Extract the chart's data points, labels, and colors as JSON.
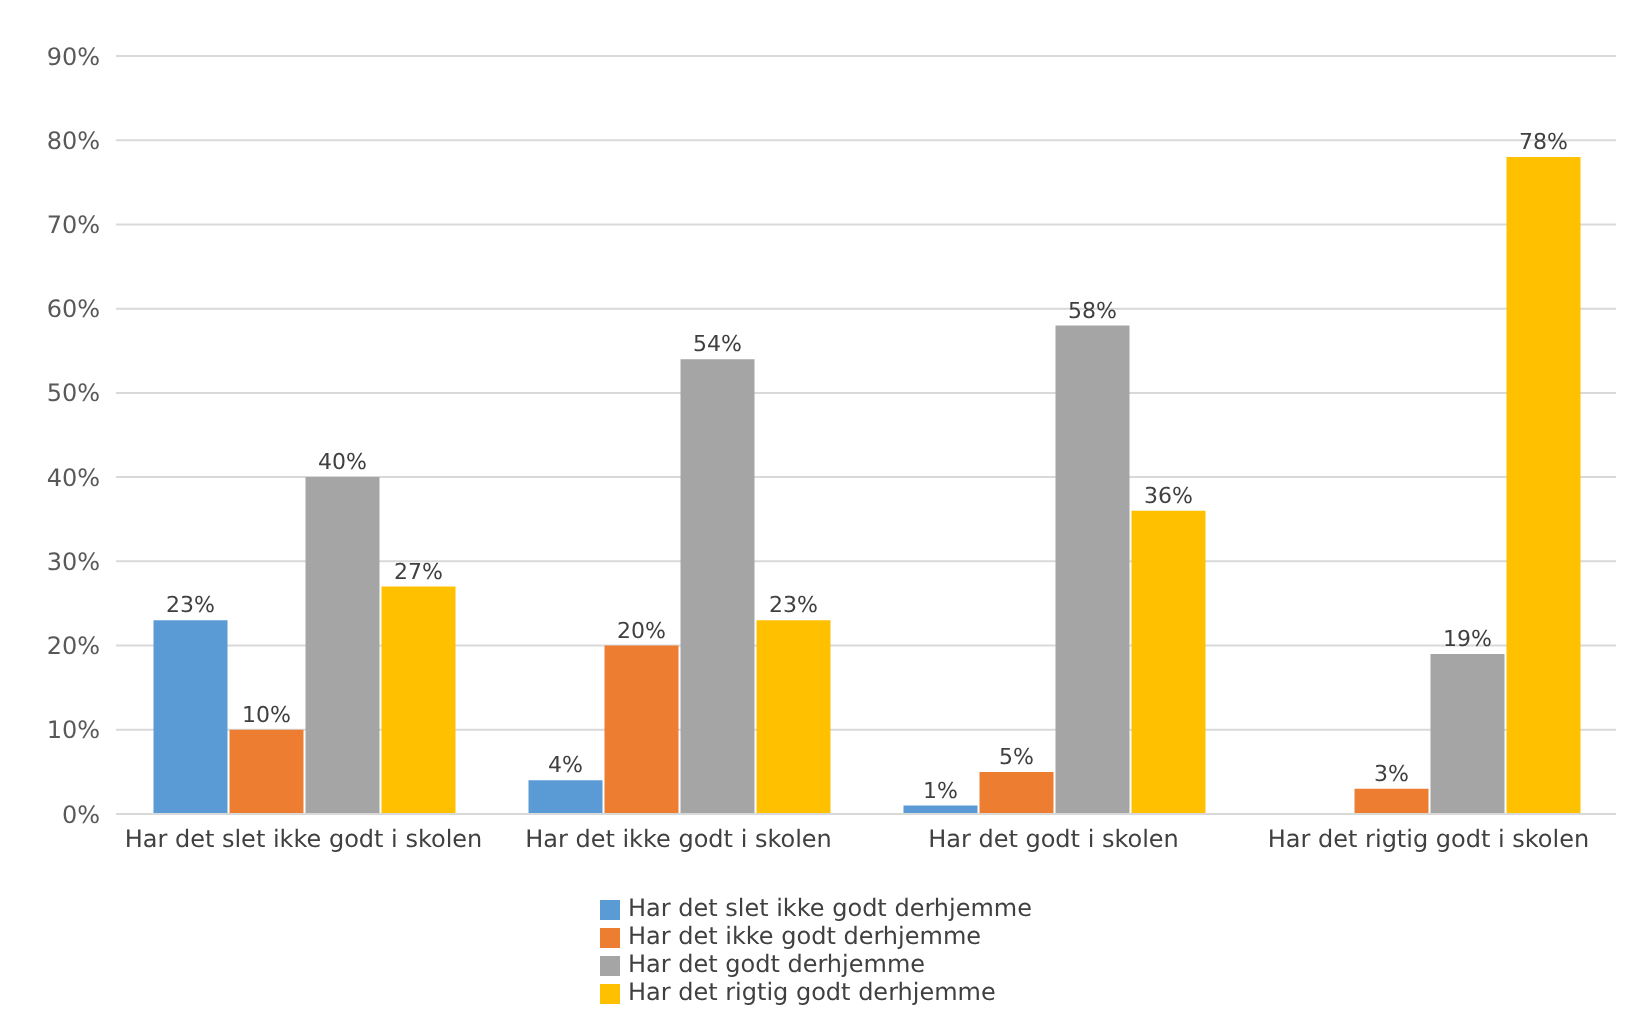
{
  "chart_data": {
    "type": "bar",
    "categories": [
      "Har det slet ikke godt i skolen",
      "Har det ikke godt i skolen",
      "Har det godt i skolen",
      "Har det rigtig godt i skolen"
    ],
    "series": [
      {
        "name": "Har det slet ikke godt derhjemme",
        "color": "#5b9bd5",
        "values": [
          23,
          4,
          1,
          0
        ],
        "value_labels": [
          "23%",
          "4%",
          "1%",
          null
        ]
      },
      {
        "name": "Har det ikke godt derhjemme",
        "color": "#ed7d31",
        "values": [
          10,
          20,
          5,
          3
        ],
        "value_labels": [
          "10%",
          "20%",
          "5%",
          "3%"
        ]
      },
      {
        "name": "Har det godt derhjemme",
        "color": "#a5a5a5",
        "values": [
          40,
          54,
          58,
          19
        ],
        "value_labels": [
          "40%",
          "54%",
          "58%",
          "19%"
        ]
      },
      {
        "name": "Har det rigtig godt derhjemme",
        "color": "#ffc000",
        "values": [
          27,
          23,
          36,
          78
        ],
        "value_labels": [
          "27%",
          "23%",
          "36%",
          "78%"
        ]
      }
    ],
    "ylim": [
      0,
      90
    ],
    "yticks": [
      {
        "value": 0,
        "label": "0%"
      },
      {
        "value": 10,
        "label": "10%"
      },
      {
        "value": 20,
        "label": "20%"
      },
      {
        "value": 30,
        "label": "30%"
      },
      {
        "value": 40,
        "label": "40%"
      },
      {
        "value": 50,
        "label": "50%"
      },
      {
        "value": 60,
        "label": "60%"
      },
      {
        "value": 70,
        "label": "70%"
      },
      {
        "value": 80,
        "label": "80%"
      },
      {
        "value": 90,
        "label": "90%"
      }
    ],
    "grid": "y",
    "legend": "bottom"
  }
}
